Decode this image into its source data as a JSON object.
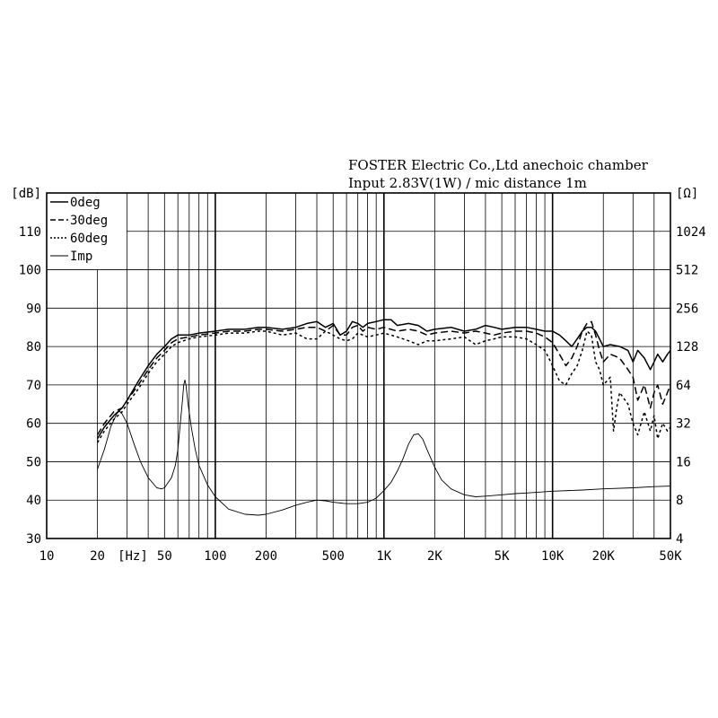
{
  "header": {
    "line1": "FOSTER Electric Co.,Ltd  anechoic chamber",
    "line2": "Input 2.83V(1W) / mic distance 1m"
  },
  "chart_data": {
    "type": "line",
    "x_scale": "log",
    "xlim": [
      10,
      50000
    ],
    "ylim": [
      30,
      120
    ],
    "y2_scale": "log2",
    "y2lim": [
      4,
      2048
    ],
    "xlabel": "[Hz]",
    "ylabel": "[dB]",
    "y2label": "[Ω]",
    "grid": true,
    "legend_position": "top-left",
    "x_ticks": [
      {
        "v": 10,
        "label": "10"
      },
      {
        "v": 20,
        "label": "20"
      },
      {
        "v": 50,
        "label": "50"
      },
      {
        "v": 100,
        "label": "100"
      },
      {
        "v": 200,
        "label": "200"
      },
      {
        "v": 500,
        "label": "500"
      },
      {
        "v": 1000,
        "label": "1K"
      },
      {
        "v": 2000,
        "label": "2K"
      },
      {
        "v": 5000,
        "label": "5K"
      },
      {
        "v": 10000,
        "label": "10K"
      },
      {
        "v": 20000,
        "label": "20K"
      },
      {
        "v": 50000,
        "label": "50K"
      }
    ],
    "y_ticks": [
      30,
      40,
      50,
      60,
      70,
      80,
      90,
      100,
      110
    ],
    "y2_ticks": [
      4,
      8,
      16,
      32,
      64,
      128,
      256,
      512,
      1024
    ],
    "series": [
      {
        "name": "0deg",
        "axis": "left",
        "dash": "",
        "points": [
          [
            20,
            56
          ],
          [
            22,
            59
          ],
          [
            25,
            62
          ],
          [
            28,
            64
          ],
          [
            30,
            66
          ],
          [
            35,
            71
          ],
          [
            40,
            75
          ],
          [
            45,
            78
          ],
          [
            50,
            80
          ],
          [
            55,
            82
          ],
          [
            60,
            83
          ],
          [
            70,
            83
          ],
          [
            80,
            83.5
          ],
          [
            100,
            84
          ],
          [
            120,
            84.5
          ],
          [
            150,
            84.5
          ],
          [
            180,
            85
          ],
          [
            200,
            85
          ],
          [
            250,
            84.5
          ],
          [
            300,
            85
          ],
          [
            350,
            86
          ],
          [
            400,
            86.5
          ],
          [
            450,
            85
          ],
          [
            500,
            86
          ],
          [
            550,
            83
          ],
          [
            600,
            84
          ],
          [
            650,
            86.5
          ],
          [
            700,
            86
          ],
          [
            750,
            85
          ],
          [
            800,
            86
          ],
          [
            900,
            86.5
          ],
          [
            1000,
            87
          ],
          [
            1100,
            87
          ],
          [
            1200,
            85.5
          ],
          [
            1400,
            86
          ],
          [
            1600,
            85.5
          ],
          [
            1800,
            84
          ],
          [
            2000,
            84.5
          ],
          [
            2500,
            85
          ],
          [
            3000,
            84
          ],
          [
            3500,
            84.5
          ],
          [
            4000,
            85.5
          ],
          [
            4500,
            85
          ],
          [
            5000,
            84.5
          ],
          [
            6000,
            85
          ],
          [
            7000,
            85
          ],
          [
            8000,
            84.5
          ],
          [
            9000,
            84
          ],
          [
            10000,
            84
          ],
          [
            11000,
            83
          ],
          [
            12000,
            81.5
          ],
          [
            13000,
            80
          ],
          [
            14000,
            82
          ],
          [
            15000,
            84
          ],
          [
            16000,
            85
          ],
          [
            17000,
            85
          ],
          [
            18000,
            84
          ],
          [
            19000,
            82
          ],
          [
            20000,
            80
          ],
          [
            22000,
            80.5
          ],
          [
            25000,
            80
          ],
          [
            28000,
            79
          ],
          [
            30000,
            76
          ],
          [
            32000,
            79
          ],
          [
            35000,
            77
          ],
          [
            38000,
            74
          ],
          [
            40000,
            76
          ],
          [
            42000,
            78
          ],
          [
            45000,
            76
          ],
          [
            48000,
            78
          ],
          [
            50000,
            79
          ]
        ]
      },
      {
        "name": "30deg",
        "axis": "left",
        "dash": "8,4",
        "points": [
          [
            20,
            57
          ],
          [
            22,
            60
          ],
          [
            25,
            63
          ],
          [
            28,
            64
          ],
          [
            30,
            66
          ],
          [
            35,
            70
          ],
          [
            40,
            74
          ],
          [
            45,
            77
          ],
          [
            50,
            79
          ],
          [
            55,
            81
          ],
          [
            60,
            82
          ],
          [
            70,
            82.5
          ],
          [
            80,
            83
          ],
          [
            100,
            83.5
          ],
          [
            120,
            84
          ],
          [
            150,
            84
          ],
          [
            180,
            84.5
          ],
          [
            200,
            84.5
          ],
          [
            250,
            84
          ],
          [
            300,
            84.5
          ],
          [
            350,
            85
          ],
          [
            400,
            85
          ],
          [
            450,
            84
          ],
          [
            500,
            85.5
          ],
          [
            550,
            83
          ],
          [
            600,
            83
          ],
          [
            650,
            85
          ],
          [
            700,
            85.5
          ],
          [
            750,
            84
          ],
          [
            800,
            85
          ],
          [
            900,
            84.5
          ],
          [
            1000,
            85
          ],
          [
            1200,
            84
          ],
          [
            1400,
            84.5
          ],
          [
            1600,
            84
          ],
          [
            1800,
            83
          ],
          [
            2000,
            83.5
          ],
          [
            2500,
            84
          ],
          [
            3000,
            83.5
          ],
          [
            3500,
            84
          ],
          [
            4000,
            83.5
          ],
          [
            4500,
            83
          ],
          [
            5000,
            83.5
          ],
          [
            6000,
            84
          ],
          [
            7000,
            84
          ],
          [
            8000,
            83.5
          ],
          [
            9000,
            82.5
          ],
          [
            10000,
            81
          ],
          [
            11000,
            78
          ],
          [
            12000,
            75
          ],
          [
            13000,
            77
          ],
          [
            14000,
            80
          ],
          [
            15000,
            84
          ],
          [
            16000,
            86
          ],
          [
            17000,
            86.5
          ],
          [
            18000,
            83
          ],
          [
            19000,
            79
          ],
          [
            20000,
            76
          ],
          [
            22000,
            78
          ],
          [
            25000,
            77
          ],
          [
            28000,
            74
          ],
          [
            30000,
            72
          ],
          [
            32000,
            66
          ],
          [
            35000,
            70
          ],
          [
            38000,
            64
          ],
          [
            40000,
            68
          ],
          [
            42000,
            70
          ],
          [
            45000,
            65
          ],
          [
            48000,
            68
          ],
          [
            50000,
            70
          ]
        ]
      },
      {
        "name": "60deg",
        "axis": "left",
        "dash": "3,3",
        "points": [
          [
            20,
            55
          ],
          [
            22,
            58
          ],
          [
            25,
            61
          ],
          [
            28,
            63
          ],
          [
            30,
            65
          ],
          [
            35,
            69
          ],
          [
            40,
            73
          ],
          [
            45,
            76
          ],
          [
            50,
            78
          ],
          [
            55,
            80
          ],
          [
            60,
            81
          ],
          [
            70,
            82
          ],
          [
            80,
            82.5
          ],
          [
            100,
            83
          ],
          [
            120,
            83.5
          ],
          [
            150,
            83.5
          ],
          [
            180,
            84
          ],
          [
            200,
            84
          ],
          [
            250,
            83
          ],
          [
            300,
            83.5
          ],
          [
            350,
            82
          ],
          [
            400,
            82
          ],
          [
            450,
            84
          ],
          [
            500,
            83
          ],
          [
            550,
            82
          ],
          [
            600,
            81.5
          ],
          [
            650,
            82
          ],
          [
            700,
            83.5
          ],
          [
            750,
            83
          ],
          [
            800,
            82.5
          ],
          [
            900,
            83
          ],
          [
            1000,
            83.5
          ],
          [
            1200,
            82.5
          ],
          [
            1400,
            81.5
          ],
          [
            1600,
            80.5
          ],
          [
            1800,
            81.5
          ],
          [
            2000,
            81.5
          ],
          [
            2500,
            82
          ],
          [
            3000,
            82.5
          ],
          [
            3500,
            80.5
          ],
          [
            4000,
            81.5
          ],
          [
            4500,
            82
          ],
          [
            5000,
            82.5
          ],
          [
            6000,
            82.5
          ],
          [
            7000,
            82
          ],
          [
            8000,
            80.5
          ],
          [
            9000,
            79
          ],
          [
            10000,
            75
          ],
          [
            11000,
            71
          ],
          [
            12000,
            70
          ],
          [
            13000,
            73
          ],
          [
            14000,
            75
          ],
          [
            15000,
            79
          ],
          [
            16000,
            84
          ],
          [
            17000,
            83
          ],
          [
            18000,
            76
          ],
          [
            19000,
            74
          ],
          [
            20000,
            70
          ],
          [
            22000,
            72
          ],
          [
            23000,
            58
          ],
          [
            24000,
            64
          ],
          [
            25000,
            68
          ],
          [
            28000,
            65
          ],
          [
            30000,
            60
          ],
          [
            32000,
            57
          ],
          [
            35000,
            63
          ],
          [
            38000,
            58
          ],
          [
            40000,
            62
          ],
          [
            42000,
            56
          ],
          [
            45000,
            60
          ],
          [
            48000,
            58
          ],
          [
            50000,
            59
          ]
        ]
      },
      {
        "name": "Imp",
        "axis": "right",
        "dash": "",
        "thin": true,
        "points": [
          [
            20,
            14
          ],
          [
            22,
            20
          ],
          [
            24,
            30
          ],
          [
            26,
            38
          ],
          [
            27,
            40
          ],
          [
            28,
            38
          ],
          [
            30,
            32
          ],
          [
            33,
            22
          ],
          [
            36,
            16
          ],
          [
            40,
            12
          ],
          [
            45,
            10
          ],
          [
            48,
            9.8
          ],
          [
            50,
            10
          ],
          [
            55,
            12
          ],
          [
            58,
            15
          ],
          [
            60,
            20
          ],
          [
            62,
            32
          ],
          [
            64,
            50
          ],
          [
            65,
            64
          ],
          [
            66,
            70
          ],
          [
            67,
            64
          ],
          [
            69,
            45
          ],
          [
            72,
            30
          ],
          [
            76,
            20
          ],
          [
            80,
            15
          ],
          [
            90,
            10.5
          ],
          [
            100,
            8.5
          ],
          [
            120,
            6.8
          ],
          [
            150,
            6.2
          ],
          [
            180,
            6.1
          ],
          [
            200,
            6.2
          ],
          [
            250,
            6.7
          ],
          [
            300,
            7.3
          ],
          [
            350,
            7.7
          ],
          [
            400,
            8.0
          ],
          [
            450,
            7.9
          ],
          [
            500,
            7.7
          ],
          [
            600,
            7.5
          ],
          [
            700,
            7.5
          ],
          [
            800,
            7.7
          ],
          [
            900,
            8.3
          ],
          [
            1000,
            9.5
          ],
          [
            1100,
            11
          ],
          [
            1200,
            13.5
          ],
          [
            1300,
            17
          ],
          [
            1400,
            22
          ],
          [
            1500,
            26
          ],
          [
            1600,
            26.5
          ],
          [
            1700,
            24
          ],
          [
            1800,
            20
          ],
          [
            2000,
            14.5
          ],
          [
            2200,
            11.5
          ],
          [
            2500,
            9.8
          ],
          [
            3000,
            8.8
          ],
          [
            3500,
            8.5
          ],
          [
            4000,
            8.6
          ],
          [
            5000,
            8.8
          ],
          [
            6000,
            9.0
          ],
          [
            7000,
            9.1
          ],
          [
            8000,
            9.2
          ],
          [
            10000,
            9.4
          ],
          [
            15000,
            9.6
          ],
          [
            20000,
            9.8
          ],
          [
            30000,
            10.0
          ],
          [
            40000,
            10.2
          ],
          [
            50000,
            10.3
          ]
        ]
      }
    ]
  }
}
